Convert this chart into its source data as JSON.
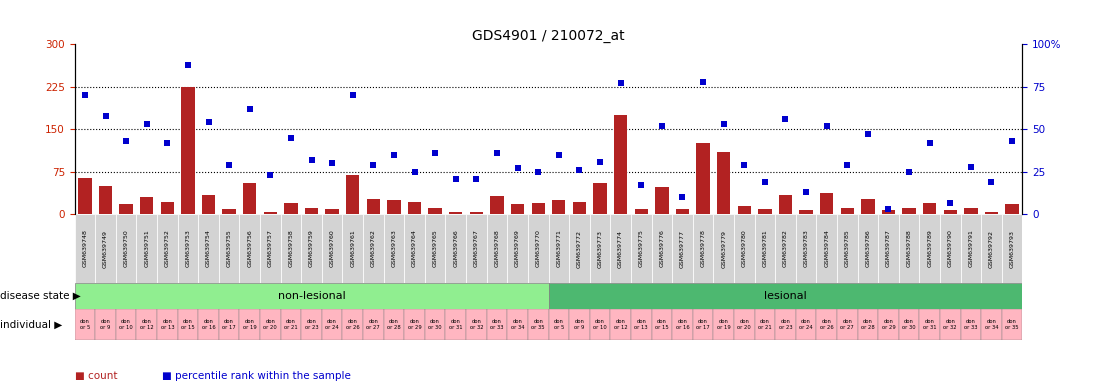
{
  "title": "GDS4901 / 210072_at",
  "samples": [
    "GSM639748",
    "GSM639749",
    "GSM639750",
    "GSM639751",
    "GSM639752",
    "GSM639753",
    "GSM639754",
    "GSM639755",
    "GSM639756",
    "GSM639757",
    "GSM639758",
    "GSM639759",
    "GSM639760",
    "GSM639761",
    "GSM639762",
    "GSM639763",
    "GSM639764",
    "GSM639765",
    "GSM639766",
    "GSM639767",
    "GSM639768",
    "GSM639769",
    "GSM639770",
    "GSM639771",
    "GSM639772",
    "GSM639773",
    "GSM639774",
    "GSM639775",
    "GSM639776",
    "GSM639777",
    "GSM639778",
    "GSM639779",
    "GSM639780",
    "GSM639781",
    "GSM639782",
    "GSM639783",
    "GSM639784",
    "GSM639785",
    "GSM639786",
    "GSM639787",
    "GSM639788",
    "GSM639789",
    "GSM639790",
    "GSM639791",
    "GSM639792",
    "GSM639793"
  ],
  "counts": [
    65,
    50,
    18,
    30,
    22,
    225,
    35,
    10,
    55,
    5,
    20,
    12,
    10,
    70,
    28,
    25,
    22,
    12,
    5,
    5,
    32,
    18,
    20,
    25,
    22,
    55,
    175,
    10,
    48,
    10,
    125,
    110,
    15,
    10,
    35,
    8,
    38,
    12,
    28,
    8,
    12,
    20,
    8,
    12,
    5,
    18
  ],
  "percentile_ranks": [
    70,
    58,
    43,
    53,
    42,
    88,
    54,
    29,
    62,
    23,
    45,
    32,
    30,
    70,
    29,
    35,
    25,
    36,
    21,
    21,
    36,
    27,
    25,
    35,
    26,
    31,
    77,
    17,
    52,
    10,
    78,
    53,
    29,
    19,
    56,
    13,
    52,
    29,
    47,
    3,
    25,
    42,
    7,
    28,
    19,
    43
  ],
  "disease_state": [
    "non-lesional",
    "non-lesional",
    "non-lesional",
    "non-lesional",
    "non-lesional",
    "non-lesional",
    "non-lesional",
    "non-lesional",
    "non-lesional",
    "non-lesional",
    "non-lesional",
    "non-lesional",
    "non-lesional",
    "non-lesional",
    "non-lesional",
    "non-lesional",
    "non-lesional",
    "non-lesional",
    "non-lesional",
    "non-lesional",
    "non-lesional",
    "non-lesional",
    "non-lesional",
    "lesional",
    "lesional",
    "lesional",
    "lesional",
    "lesional",
    "lesional",
    "lesional",
    "lesional",
    "lesional",
    "lesional",
    "lesional",
    "lesional",
    "lesional",
    "lesional",
    "lesional",
    "lesional",
    "lesional",
    "lesional",
    "lesional",
    "lesional",
    "lesional",
    "lesional",
    "lesional"
  ],
  "individuals": [
    "don\nor 5",
    "don\nor 9",
    "don\nor 10",
    "don\nor 12",
    "don\nor 13",
    "don\nor 15",
    "don\nor 16",
    "don\nor 17",
    "don\nor 19",
    "don\nor 20",
    "don\nor 21",
    "don\nor 23",
    "don\nor 24",
    "don\nor 26",
    "don\nor 27",
    "don\nor 28",
    "don\nor 29",
    "don\nor 30",
    "don\nor 31",
    "don\nor 32",
    "don\nor 33",
    "don\nor 34",
    "don\nor 35",
    "don\nor 5",
    "don\nor 9",
    "don\nor 10",
    "don\nor 12",
    "don\nor 13",
    "don\nor 15",
    "don\nor 16",
    "don\nor 17",
    "don\nor 19",
    "don\nor 20",
    "don\nor 21",
    "don\nor 23",
    "don\nor 24",
    "don\nor 26",
    "don\nor 27",
    "don\nor 28",
    "don\nor 29",
    "don\nor 30",
    "don\nor 31",
    "don\nor 32",
    "don\nor 33",
    "don\nor 34",
    "don\nor 35"
  ],
  "bar_color": "#b22222",
  "scatter_color": "#0000cd",
  "nonlesional_color": "#90ee90",
  "lesional_color": "#4db870",
  "individual_color": "#ffb6c1",
  "sample_box_color": "#d3d3d3",
  "tick_color_left": "#cc2200",
  "tick_color_right": "#0000cc",
  "ylim_left": [
    0,
    300
  ],
  "ylim_right": [
    0,
    100
  ],
  "yticks_left": [
    0,
    75,
    150,
    225,
    300
  ],
  "yticks_right": [
    0,
    25,
    50,
    75,
    100
  ],
  "hlines": [
    75,
    150,
    225
  ],
  "bg_color": "#ffffff",
  "transition_index": 23
}
